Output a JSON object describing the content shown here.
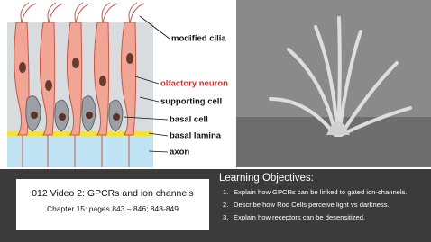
{
  "figure": {
    "labels": [
      "modified cilia",
      "olfactory neuron",
      "supporting cell",
      "basal cell",
      "basal lamina",
      "axon"
    ]
  },
  "title_box": {
    "title": "012 Video 2:  GPCRs and ion channels",
    "subtitle": "Chapter 15: pages 843 – 846; 848-849"
  },
  "objectives": {
    "heading": "Learning Objectives:",
    "items": [
      {
        "number": "1.",
        "text": "Explain how GPCRs can be linked to gated ion-channels."
      },
      {
        "number": "2.",
        "text": "Describe how Rod Cells perceive light vs darkness."
      },
      {
        "number": "3.",
        "text": "Explain how receptors can be desensitized."
      }
    ]
  }
}
